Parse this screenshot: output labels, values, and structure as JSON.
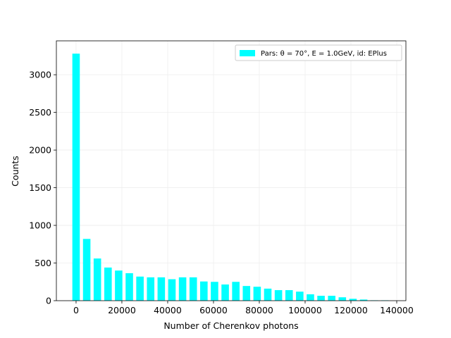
{
  "chart_data": {
    "type": "histogram",
    "xlabel": "Number of Cherenkov photons",
    "ylabel": "Counts",
    "bins": [
      -2325,
      2325,
      6975,
      11625,
      16275,
      20925,
      25575,
      30225,
      34875,
      39525,
      44175,
      48825,
      53475,
      58125,
      62775,
      67425,
      72075,
      76725,
      81375,
      86025,
      90675,
      95325,
      99975,
      104625,
      109275,
      113925,
      118575,
      123225,
      127875,
      132525,
      137175
    ],
    "series": [
      {
        "name": "Pars: θ = 70°, E = 1.0GeV, id: EPlus",
        "color": "#00ffff",
        "values": [
          3280,
          820,
          560,
          440,
          400,
          365,
          320,
          310,
          310,
          285,
          310,
          310,
          255,
          250,
          215,
          250,
          195,
          185,
          160,
          140,
          140,
          120,
          85,
          65,
          65,
          45,
          25,
          15,
          5,
          5
        ]
      }
    ],
    "xlim": [
      -8600,
      144000
    ],
    "ylim": [
      0,
      3450
    ],
    "xticks": [
      0,
      20000,
      40000,
      60000,
      80000,
      100000,
      120000,
      140000
    ],
    "yticks": [
      0,
      500,
      1000,
      1500,
      2000,
      2500,
      3000
    ],
    "grid": true,
    "legend": "upper right"
  }
}
